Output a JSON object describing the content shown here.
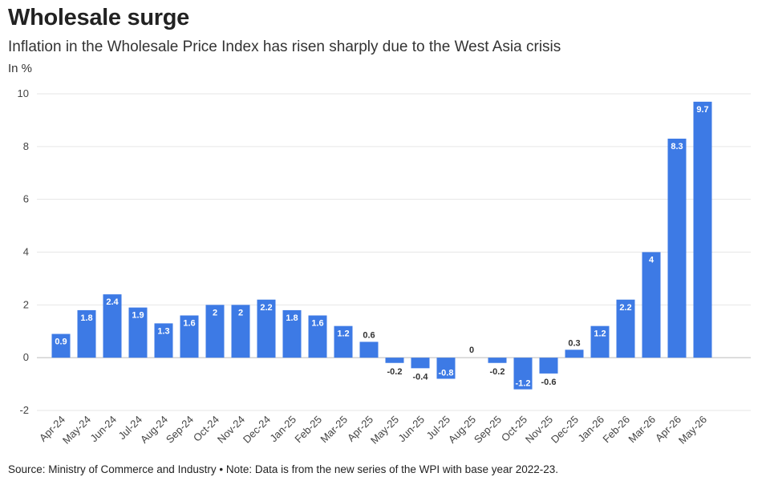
{
  "header": {
    "title": "Wholesale surge",
    "subtitle": "Inflation in the Wholesale Price Index has risen sharply due to the West Asia crisis",
    "unit_label": "In %"
  },
  "footer": {
    "source": "Source: Ministry of Commerce and Industry • Note: Data is from the new series of the WPI with base year 2022-23."
  },
  "colors": {
    "bar": "#3d7ae5",
    "grid": "#e6e6e6",
    "zero_line": "#bbbbbb"
  },
  "chart_data": {
    "type": "bar",
    "title": "Wholesale surge",
    "subtitle": "Inflation in the Wholesale Price Index has risen sharply due to the West Asia crisis",
    "ylabel": "In %",
    "xlabel": "",
    "ylim": [
      -2,
      10
    ],
    "yticks": [
      -2,
      0,
      2,
      4,
      6,
      8,
      10
    ],
    "grid": true,
    "categories": [
      "Apr-24",
      "May-24",
      "Jun-24",
      "Jul-24",
      "Aug-24",
      "Sep-24",
      "Oct-24",
      "Nov-24",
      "Dec-24",
      "Jan-25",
      "Feb-25",
      "Mar-25",
      "Apr-25",
      "May-25",
      "Jun-25",
      "Jul-25",
      "Aug-25",
      "Sep-25",
      "Oct-25",
      "Nov-25",
      "Dec-25",
      "Jan-26",
      "Feb-26",
      "Mar-26",
      "Apr-26",
      "May-26"
    ],
    "values": [
      0.9,
      1.8,
      2.4,
      1.9,
      1.3,
      1.6,
      2,
      2,
      2.2,
      1.8,
      1.6,
      1.2,
      0.6,
      -0.2,
      -0.4,
      -0.8,
      0,
      -0.2,
      -1.2,
      -0.6,
      0.3,
      1.2,
      2.2,
      4,
      8.3,
      9.7
    ]
  }
}
